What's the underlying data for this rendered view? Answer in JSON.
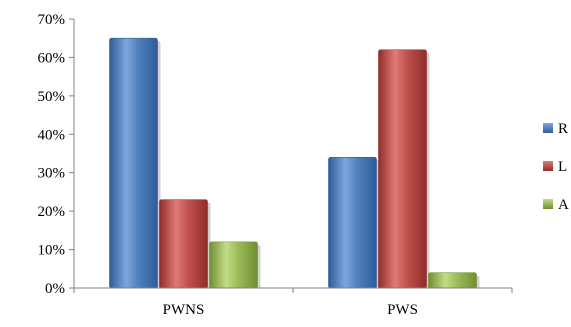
{
  "chart_data": {
    "type": "bar",
    "categories": [
      "PWNS",
      "PWS"
    ],
    "series": [
      {
        "name": "R",
        "values": [
          0.65,
          0.34
        ],
        "color": "#4f81bd",
        "color_light": "#7fa6dd",
        "color_dark": "#2f5c99"
      },
      {
        "name": "L",
        "values": [
          0.23,
          0.62
        ],
        "color": "#c0504d",
        "color_light": "#e07a77",
        "color_dark": "#8f2e2b"
      },
      {
        "name": "A",
        "values": [
          0.12,
          0.04
        ],
        "color": "#9bbb59",
        "color_light": "#c3dc86",
        "color_dark": "#6f8f33"
      }
    ],
    "ylim": [
      0,
      0.7
    ],
    "yticks": [
      0,
      0.1,
      0.2,
      0.3,
      0.4,
      0.5,
      0.6,
      0.7
    ],
    "ytick_labels": [
      "0%",
      "10%",
      "20%",
      "30%",
      "40%",
      "50%",
      "60%",
      "70%"
    ],
    "title": "",
    "xlabel": "",
    "ylabel": "",
    "grid": false,
    "legend_position": "right"
  }
}
